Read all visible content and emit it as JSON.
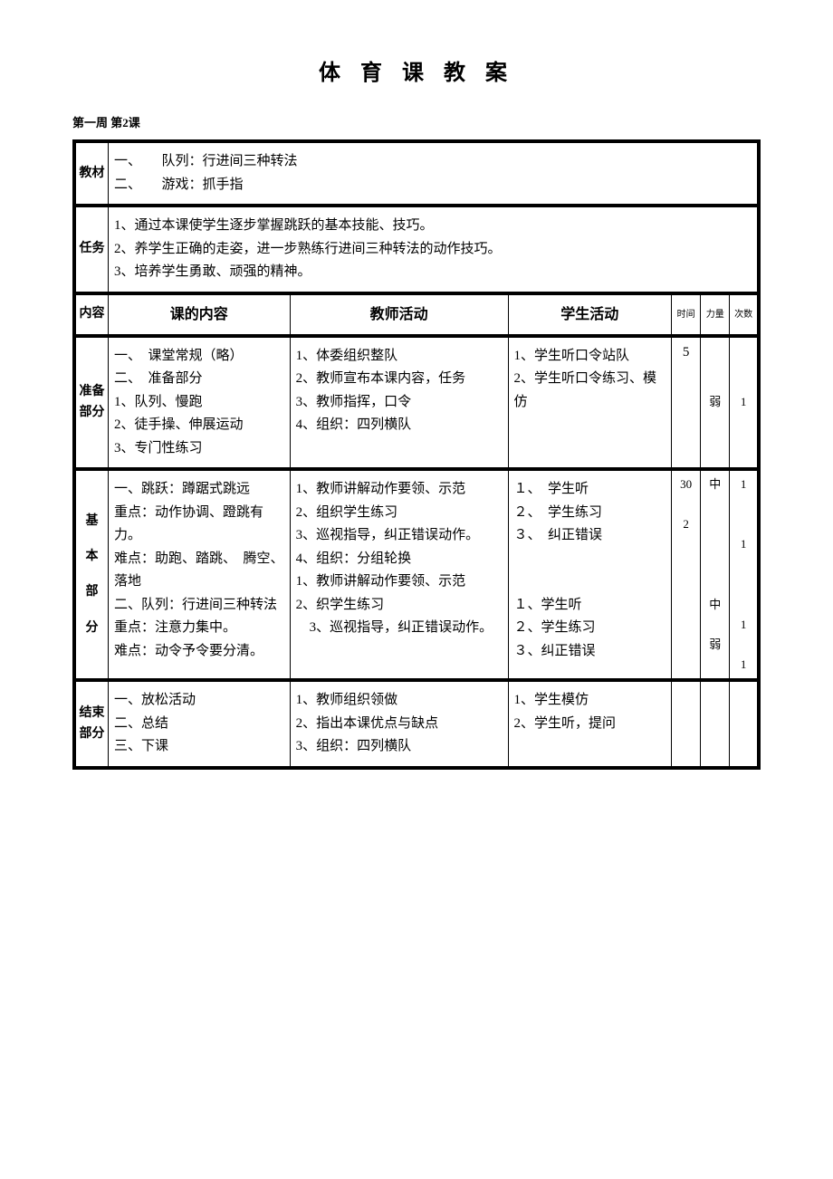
{
  "title": "体 育 课 教 案",
  "subtitle": "第一周 第2课",
  "rows": {
    "jiaocai": {
      "label": "教材",
      "content": "一、　　队列：行进间三种转法\n二、　　游戏：抓手指"
    },
    "renwu": {
      "label": "任务",
      "content": "1、通过本课使学生逐步掌握跳跃的基本技能、技巧。\n2、养学生正确的走姿，进一步熟练行进间三种转法的动作技巧。\n3、培养学生勇敢、顽强的精神。"
    },
    "neirong_header": {
      "label": "内容",
      "c1": "课的内容",
      "c2": "教师活动",
      "c3": "学生活动",
      "c4": "时间",
      "c5": "力量",
      "c6": "次数"
    },
    "zhunbei": {
      "label": "准备部分",
      "content": "一、　课堂常规（略）\n二、　准备部分\n1、队列、慢跑\n2、徒手操、伸展运动\n3、专门性练习",
      "teacher": "1、体委组织整队\n2、教师宣布本课内容，任务\n3、教师指挥，口令\n4、组织：四列横队",
      "student": "1、学生听口令站队\n2、学生听口令练习、模仿",
      "time": "5",
      "strength": "弱",
      "count": "1"
    },
    "jiben": {
      "label": "基\n\n本\n\n部\n\n分",
      "content": "一、跳跃：蹲踞式跳远\n重点：动作协调、蹬跳有力。\n难点：助跑、踏跳、　腾空、落地\n二、队列：行进间三种转法\n重点：注意力集中。\n难点：动令予令要分清。",
      "teacher": "1、教师讲解动作要领、示范\n2、组织学生练习\n3、巡视指导，纠正错误动作。\n4、组织：分组轮换\n1、教师讲解动作要领、示范\n2、织学生练习\n　3、巡视指导，纠正错误动作。",
      "student": "１、　学生听\n２、　学生练习\n３、　纠正错误\n\n\n１、学生听\n２、学生练习\n３、纠正错误",
      "time": "30\n\n2",
      "strength": "中\n\n\n\n\n\n中\n\n弱",
      "count": "1\n\n\n1\n\n\n\n1\n\n1"
    },
    "jieshu": {
      "label": "结束部分",
      "content": "一、放松活动\n二、总结\n三、下课",
      "teacher": "1、教师组织领做\n2、指出本课优点与缺点\n3、组织：四列横队",
      "student": "1、学生模仿\n2、学生听，提问"
    }
  }
}
